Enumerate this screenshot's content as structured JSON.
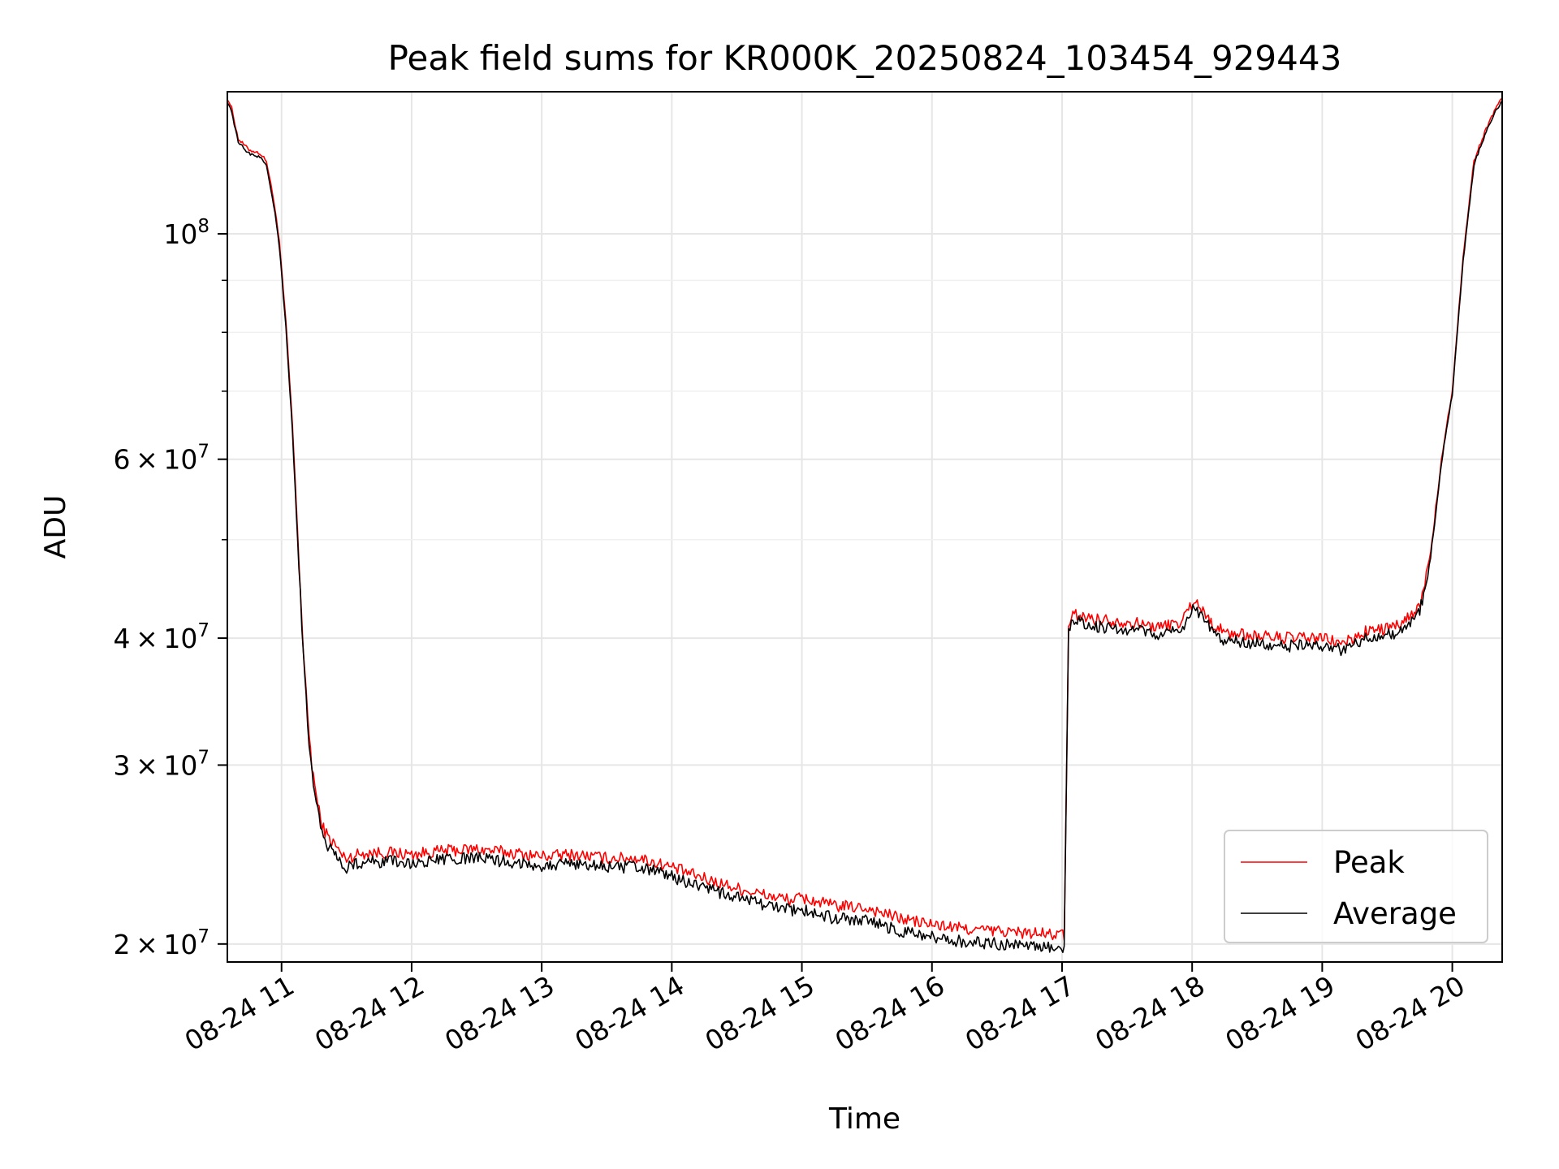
{
  "chart_data": {
    "type": "line",
    "title": "Peak field sums for KR000K_20250824_103454_929443",
    "xlabel": "Time",
    "ylabel": "ADU",
    "yscale": "log",
    "xlim": [
      "2025-08-24 10:35",
      "2025-08-24 20:23"
    ],
    "ylim": [
      19200000,
      138000000
    ],
    "grid": true,
    "legend_position": "bottom-right",
    "x_ticks": [
      {
        "at": "2025-08-24 11:00",
        "label": "08-24 11"
      },
      {
        "at": "2025-08-24 12:00",
        "label": "08-24 12"
      },
      {
        "at": "2025-08-24 13:00",
        "label": "08-24 13"
      },
      {
        "at": "2025-08-24 14:00",
        "label": "08-24 14"
      },
      {
        "at": "2025-08-24 15:00",
        "label": "08-24 15"
      },
      {
        "at": "2025-08-24 16:00",
        "label": "08-24 16"
      },
      {
        "at": "2025-08-24 17:00",
        "label": "08-24 17"
      },
      {
        "at": "2025-08-24 18:00",
        "label": "08-24 18"
      },
      {
        "at": "2025-08-24 19:00",
        "label": "08-24 19"
      },
      {
        "at": "2025-08-24 20:00",
        "label": "08-24 20"
      }
    ],
    "y_major_ticks": [
      {
        "value": 20000000,
        "mantissa": "2",
        "exponent": "7"
      },
      {
        "value": 30000000,
        "mantissa": "3",
        "exponent": "7"
      },
      {
        "value": 40000000,
        "mantissa": "4",
        "exponent": "7"
      },
      {
        "value": 60000000,
        "mantissa": "6",
        "exponent": "7"
      },
      {
        "value": 100000000,
        "mantissa": "",
        "exponent": "8"
      }
    ],
    "y_minor_ticks": [
      50000000,
      70000000,
      80000000,
      90000000
    ],
    "x": [
      "2025-08-24 10:35",
      "2025-08-24 10:37",
      "2025-08-24 10:40",
      "2025-08-24 10:45",
      "2025-08-24 10:50",
      "2025-08-24 10:53",
      "2025-08-24 10:55",
      "2025-08-24 10:57",
      "2025-08-24 10:59",
      "2025-08-24 11:02",
      "2025-08-24 11:05",
      "2025-08-24 11:08",
      "2025-08-24 11:10",
      "2025-08-24 11:12",
      "2025-08-24 11:14",
      "2025-08-24 11:16",
      "2025-08-24 11:18",
      "2025-08-24 11:20",
      "2025-08-24 11:22",
      "2025-08-24 11:25",
      "2025-08-24 11:28",
      "2025-08-24 11:30",
      "2025-08-24 11:35",
      "2025-08-24 11:40",
      "2025-08-24 11:50",
      "2025-08-24 12:00",
      "2025-08-24 12:15",
      "2025-08-24 12:30",
      "2025-08-24 12:45",
      "2025-08-24 13:00",
      "2025-08-24 13:15",
      "2025-08-24 13:30",
      "2025-08-24 13:45",
      "2025-08-24 14:00",
      "2025-08-24 14:15",
      "2025-08-24 14:30",
      "2025-08-24 14:45",
      "2025-08-24 14:55",
      "2025-08-24 15:00",
      "2025-08-24 15:15",
      "2025-08-24 15:30",
      "2025-08-24 15:45",
      "2025-08-24 16:00",
      "2025-08-24 16:15",
      "2025-08-24 16:30",
      "2025-08-24 16:45",
      "2025-08-24 17:01",
      "2025-08-24 17:03",
      "2025-08-24 17:05",
      "2025-08-24 17:15",
      "2025-08-24 17:30",
      "2025-08-24 17:45",
      "2025-08-24 17:55",
      "2025-08-24 18:01",
      "2025-08-24 18:05",
      "2025-08-24 18:10",
      "2025-08-24 18:15",
      "2025-08-24 18:30",
      "2025-08-24 18:45",
      "2025-08-24 19:00",
      "2025-08-24 19:10",
      "2025-08-24 19:20",
      "2025-08-24 19:30",
      "2025-08-24 19:35",
      "2025-08-24 19:40",
      "2025-08-24 19:45",
      "2025-08-24 19:48",
      "2025-08-24 19:50",
      "2025-08-24 19:53",
      "2025-08-24 19:55",
      "2025-08-24 19:58",
      "2025-08-24 20:00",
      "2025-08-24 20:05",
      "2025-08-24 20:10",
      "2025-08-24 20:15",
      "2025-08-24 20:20",
      "2025-08-24 20:23"
    ],
    "series": [
      {
        "name": "Peak",
        "color": "#ff0000",
        "values": [
          136000000,
          133000000,
          124000000,
          121000000,
          120000000,
          118000000,
          112000000,
          106000000,
          98000000,
          82000000,
          65000000,
          48000000,
          39000000,
          33500000,
          30000000,
          28000000,
          26500000,
          25800000,
          25400000,
          25000000,
          24400000,
          24300000,
          24500000,
          24600000,
          24600000,
          24500000,
          24700000,
          24800000,
          24600000,
          24400000,
          24500000,
          24300000,
          24300000,
          23800000,
          23200000,
          22700000,
          22300000,
          22100000,
          22200000,
          21800000,
          21700000,
          21200000,
          20900000,
          20700000,
          20600000,
          20500000,
          20400000,
          41000000,
          42200000,
          41800000,
          41500000,
          41000000,
          41500000,
          43700000,
          42500000,
          41200000,
          40500000,
          40200000,
          40000000,
          40000000,
          39500000,
          40600000,
          40900000,
          41100000,
          41900000,
          43000000,
          46000000,
          49000000,
          55000000,
          60000000,
          66000000,
          70000000,
          95000000,
          118000000,
          126000000,
          133000000,
          136000000
        ]
      },
      {
        "name": "Average",
        "color": "#000000",
        "values": [
          135000000,
          132000000,
          123000000,
          120000000,
          119000000,
          117000000,
          111000000,
          105000000,
          97000000,
          81000000,
          64000000,
          47000000,
          38500000,
          33000000,
          29500000,
          27500000,
          26000000,
          25300000,
          24900000,
          24500000,
          23900000,
          23800000,
          24000000,
          24100000,
          24100000,
          24000000,
          24200000,
          24300000,
          24100000,
          23900000,
          24000000,
          23800000,
          23800000,
          23300000,
          22700000,
          22200000,
          21800000,
          21600000,
          21600000,
          21200000,
          21100000,
          20600000,
          20300000,
          20100000,
          20000000,
          19900000,
          19800000,
          40500000,
          41600000,
          41100000,
          40800000,
          40300000,
          40800000,
          43000000,
          41700000,
          40500000,
          39800000,
          39500000,
          39300000,
          39300000,
          38900000,
          40000000,
          40300000,
          40400000,
          41200000,
          42500000,
          45500000,
          48500000,
          54500000,
          59500000,
          65500000,
          69500000,
          94000000,
          117000000,
          125000000,
          132000000,
          135000000
        ]
      }
    ]
  }
}
